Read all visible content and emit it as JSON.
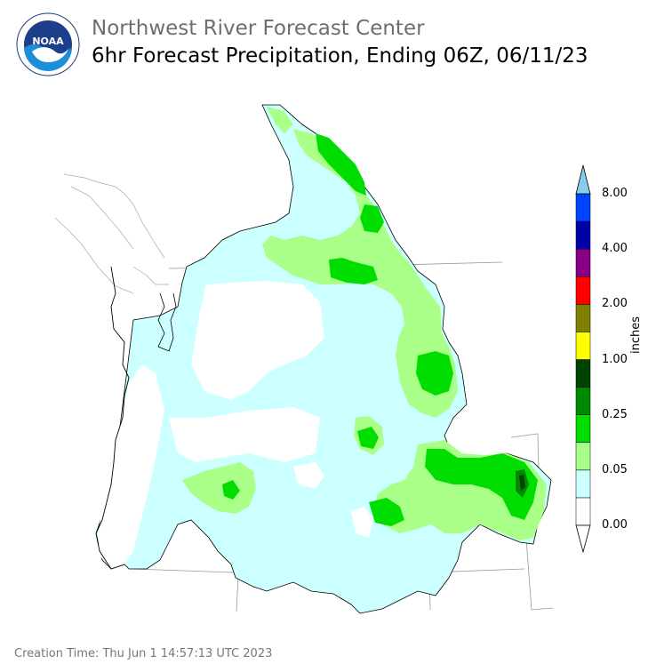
{
  "header": {
    "agency": "Northwest River Forecast Center",
    "product": "6hr Forecast Precipitation, Ending 06Z, 06/11/23",
    "logo_text": "NOAA"
  },
  "legend": {
    "units": "inches",
    "tick_labels": [
      "0.00",
      "0.05",
      "0.25",
      "1.00",
      "2.00",
      "4.00",
      "8.00"
    ],
    "colors": [
      "#ffffff",
      "#ccffff",
      "#aaff88",
      "#00dd00",
      "#008800",
      "#004400",
      "#ffff00",
      "#808000",
      "#ff0000",
      "#880088",
      "#0000aa",
      "#0044ff",
      "#88ccee"
    ]
  },
  "footer": {
    "creation_time": "Creation Time: Thu Jun 1 14:57:13 UTC 2023"
  }
}
